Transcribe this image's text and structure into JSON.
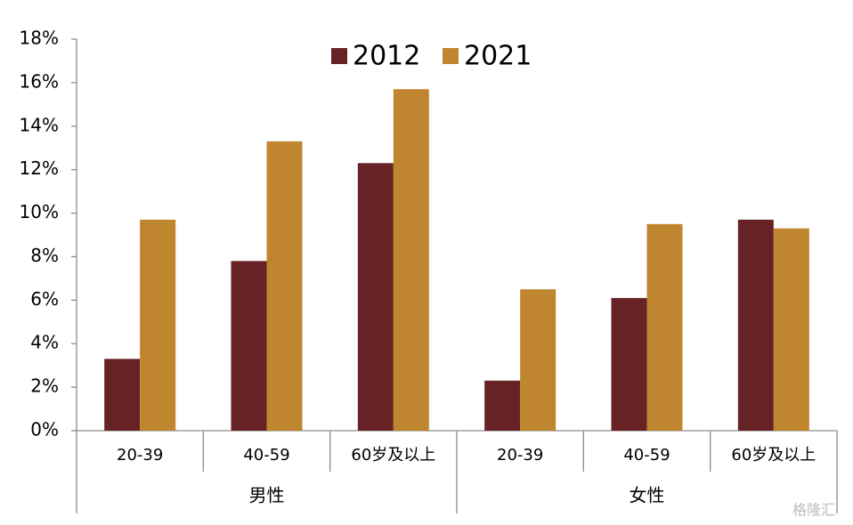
{
  "chart_data": {
    "type": "bar",
    "categories": [
      "20-39",
      "40-59",
      "60岁及以上",
      "20-39",
      "40-59",
      "60岁及以上"
    ],
    "groups": [
      "男性",
      "女性"
    ],
    "series": [
      {
        "name": "2012",
        "color": "#662225",
        "values": [
          3.3,
          7.8,
          12.3,
          2.3,
          6.1,
          9.7
        ]
      },
      {
        "name": "2021",
        "color": "#c0852f",
        "values": [
          9.7,
          13.3,
          15.7,
          6.5,
          9.5,
          9.3
        ]
      }
    ],
    "ylim": [
      0,
      18
    ],
    "yticks": [
      {
        "value": 0,
        "label": "0%"
      },
      {
        "value": 2,
        "label": "2%"
      },
      {
        "value": 4,
        "label": "4%"
      },
      {
        "value": 6,
        "label": "6%"
      },
      {
        "value": 8,
        "label": "8%"
      },
      {
        "value": 10,
        "label": "10%"
      },
      {
        "value": 12,
        "label": "12%"
      },
      {
        "value": 14,
        "label": "14%"
      },
      {
        "value": 16,
        "label": "16%"
      },
      {
        "value": 18,
        "label": "18%"
      }
    ],
    "legend": "top",
    "watermark": "格隆汇"
  }
}
